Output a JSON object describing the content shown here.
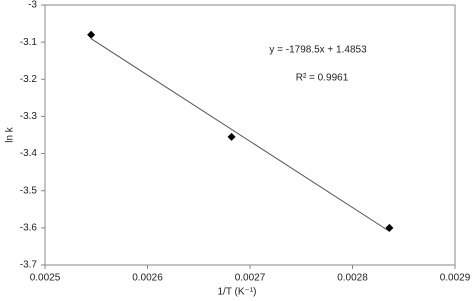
{
  "chart_data": {
    "type": "scatter",
    "x_label": "1/T (K⁻¹)",
    "y_label": "ln k",
    "annotations": [
      "y = -1798.5x + 1.4853",
      "R² = 0.9961"
    ],
    "x": [
      0.002545,
      0.002682,
      0.002836
    ],
    "values": [
      -3.08,
      -3.355,
      -3.6
    ],
    "color": "#000000",
    "marker": "diamond",
    "trendline": "linear",
    "xlim": [
      0.0025,
      0.0029
    ],
    "xticks": [
      0.0025,
      0.0026,
      0.0027,
      0.0028,
      0.0029
    ],
    "ylim": [
      -3.7,
      -3
    ],
    "yticks": [
      -3,
      -3.1,
      -3.2,
      -3.3,
      -3.4,
      -3.5,
      -3.6,
      -3.7
    ],
    "grid": false
  }
}
